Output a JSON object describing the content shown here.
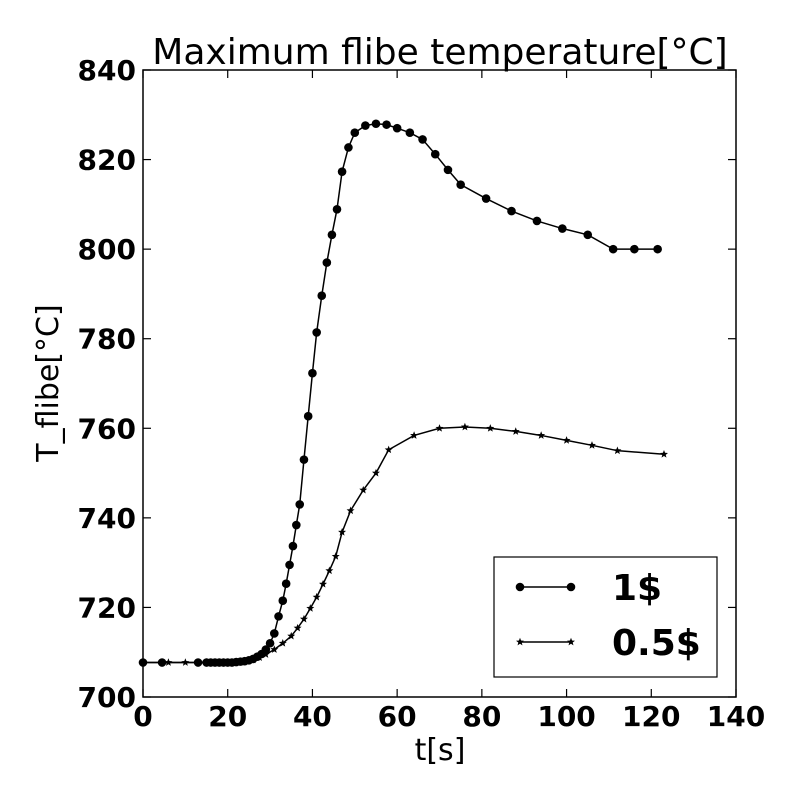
{
  "chart_data": {
    "type": "line",
    "title": "Maximum flibe temperature[°C]",
    "xlabel": "t[s]",
    "ylabel": "T_flibe[°C]",
    "xlim": [
      0,
      140
    ],
    "ylim": [
      700,
      840
    ],
    "xticks": [
      0,
      20,
      40,
      60,
      80,
      100,
      120,
      140
    ],
    "yticks": [
      700,
      720,
      740,
      760,
      780,
      800,
      820,
      840
    ],
    "grid": false,
    "legend_position": "lower-right",
    "series": [
      {
        "name": "1$",
        "marker": "circle",
        "color": "#000000",
        "x": [
          0,
          4.5,
          13,
          15,
          16,
          17,
          18,
          19,
          20,
          21,
          22,
          23,
          24,
          25,
          26,
          27,
          28,
          29,
          30,
          31,
          32,
          33,
          33.8,
          34.6,
          35.4,
          36.2,
          37,
          38,
          39,
          40,
          41,
          42.2,
          43.4,
          44.6,
          45.8,
          47,
          48.5,
          50,
          52.5,
          55,
          57.5,
          60,
          63,
          66,
          69,
          72,
          75,
          81,
          87,
          93,
          99,
          105,
          111,
          116,
          121.5
        ],
        "y": [
          707.7,
          707.7,
          707.7,
          707.7,
          707.7,
          707.7,
          707.7,
          707.7,
          707.7,
          707.7,
          707.8,
          707.9,
          708.0,
          708.2,
          708.5,
          709.0,
          709.6,
          710.6,
          712.0,
          714.2,
          718.0,
          721.5,
          725.3,
          729.5,
          733.7,
          738.4,
          743.0,
          753.0,
          762.7,
          772.3,
          781.4,
          789.6,
          797.0,
          803.2,
          808.9,
          817.3,
          822.7,
          826.0,
          827.6,
          828.0,
          827.8,
          827.0,
          826.0,
          824.5,
          821.2,
          817.7,
          814.4,
          811.3,
          808.5,
          806.3,
          804.6,
          803.2,
          800,
          800,
          800
        ],
        "x_final": [
          0,
          4.5,
          13,
          15,
          16,
          17,
          18,
          19,
          20,
          21,
          22,
          23,
          24,
          25,
          26,
          27,
          28,
          29,
          30,
          31,
          32,
          33,
          33.8,
          34.6,
          35.4,
          36.2,
          37,
          38,
          39,
          40,
          41,
          42.2,
          43.4,
          44.6,
          45.8,
          47,
          48.5,
          50,
          52.5,
          55,
          57.5,
          60,
          63,
          66,
          69,
          72,
          75,
          81,
          87,
          93,
          99,
          105,
          111,
          116,
          121.5
        ]
      },
      {
        "name": "0.5$",
        "marker": "star",
        "color": "#000000",
        "x": [
          0,
          6,
          10,
          15,
          17,
          19,
          21,
          23,
          24.5,
          26,
          27.5,
          29,
          31,
          33,
          35,
          36.5,
          38,
          39.5,
          41,
          42.5,
          44,
          45.5,
          47,
          49,
          52,
          55,
          58,
          64,
          70,
          76,
          82,
          88,
          94,
          100,
          106,
          112,
          123
        ],
        "y": [
          707.7,
          707.7,
          707.7,
          707.7,
          707.7,
          707.7,
          707.7,
          707.8,
          708.0,
          708.3,
          708.8,
          709.5,
          710.6,
          712.0,
          713.6,
          715.4,
          717.4,
          719.8,
          722.3,
          725.2,
          728.2,
          731.4,
          736.8,
          741.6,
          746.2,
          750.0,
          755.2,
          758.4,
          760.0,
          760.3,
          760.0,
          759.3,
          758.4,
          757.3,
          756.2,
          755.0,
          754.2
        ]
      }
    ]
  }
}
